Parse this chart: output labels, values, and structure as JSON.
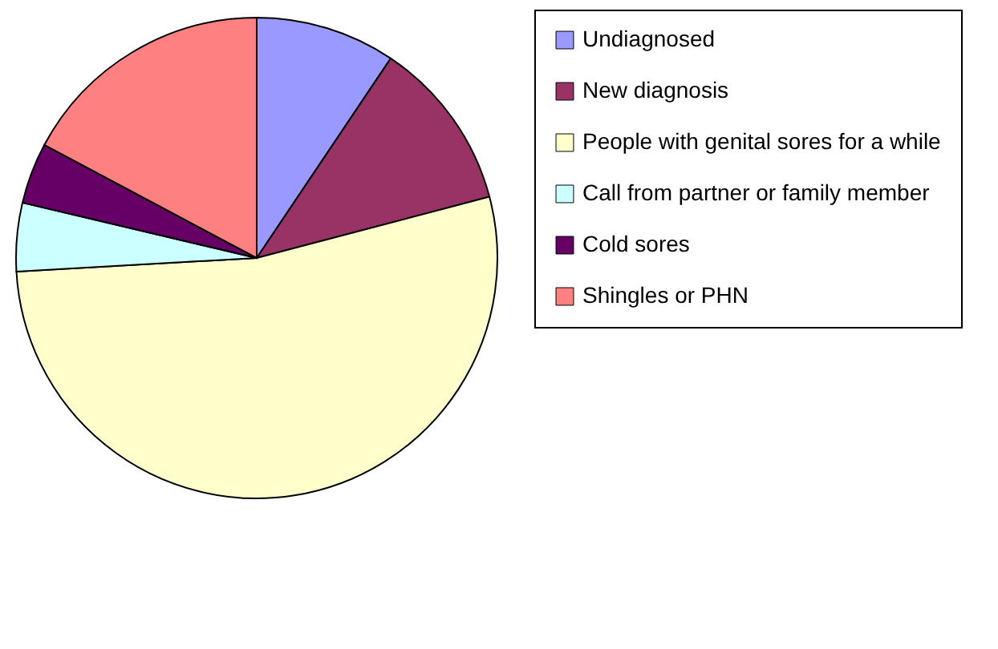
{
  "chart_data": {
    "type": "pie",
    "categories": [
      "Undiagnosed",
      "New diagnosis",
      "People with genital sores for a while",
      "Call from partner or family member",
      "Cold sores",
      "Shingles or PHN"
    ],
    "values": [
      9.4,
      11.5,
      53.2,
      4.6,
      4.1,
      17.2
    ],
    "colors": [
      "#9999ff",
      "#993366",
      "#ffffcc",
      "#ccffff",
      "#660066",
      "#ff8080"
    ],
    "legend": "right"
  }
}
